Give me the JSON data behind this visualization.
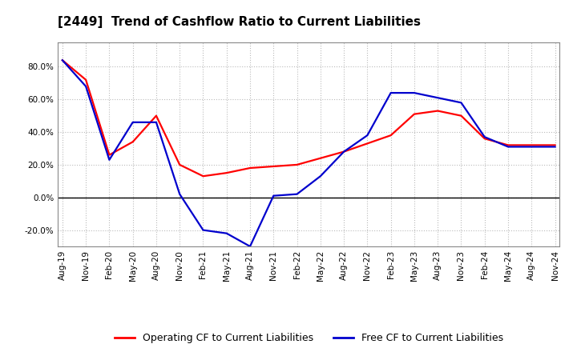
{
  "title": "[2449]  Trend of Cashflow Ratio to Current Liabilities",
  "x_labels": [
    "Aug-19",
    "Nov-19",
    "Feb-20",
    "May-20",
    "Aug-20",
    "Nov-20",
    "Feb-21",
    "May-21",
    "Aug-21",
    "Nov-21",
    "Feb-22",
    "May-22",
    "Aug-22",
    "Nov-22",
    "Feb-23",
    "May-23",
    "Aug-23",
    "Nov-23",
    "Feb-24",
    "May-24",
    "Aug-24",
    "Nov-24"
  ],
  "operating_cf": [
    84,
    72,
    26,
    34,
    50,
    20,
    13,
    15,
    18,
    19,
    20,
    24,
    28,
    33,
    38,
    51,
    53,
    50,
    36,
    32,
    32,
    32
  ],
  "free_cf": [
    84,
    68,
    23,
    46,
    46,
    2,
    -20,
    -22,
    -30,
    1,
    2,
    13,
    28,
    38,
    64,
    64,
    61,
    58,
    37,
    31,
    31,
    31
  ],
  "operating_color": "#ff0000",
  "free_color": "#0000cd",
  "ylim": [
    -30,
    95
  ],
  "yticks": [
    -20,
    0,
    20,
    40,
    60,
    80
  ],
  "background_color": "#ffffff",
  "grid_color": "#bbbbbb",
  "legend_labels": [
    "Operating CF to Current Liabilities",
    "Free CF to Current Liabilities"
  ],
  "title_fontsize": 11,
  "tick_fontsize": 7.5,
  "legend_fontsize": 9
}
